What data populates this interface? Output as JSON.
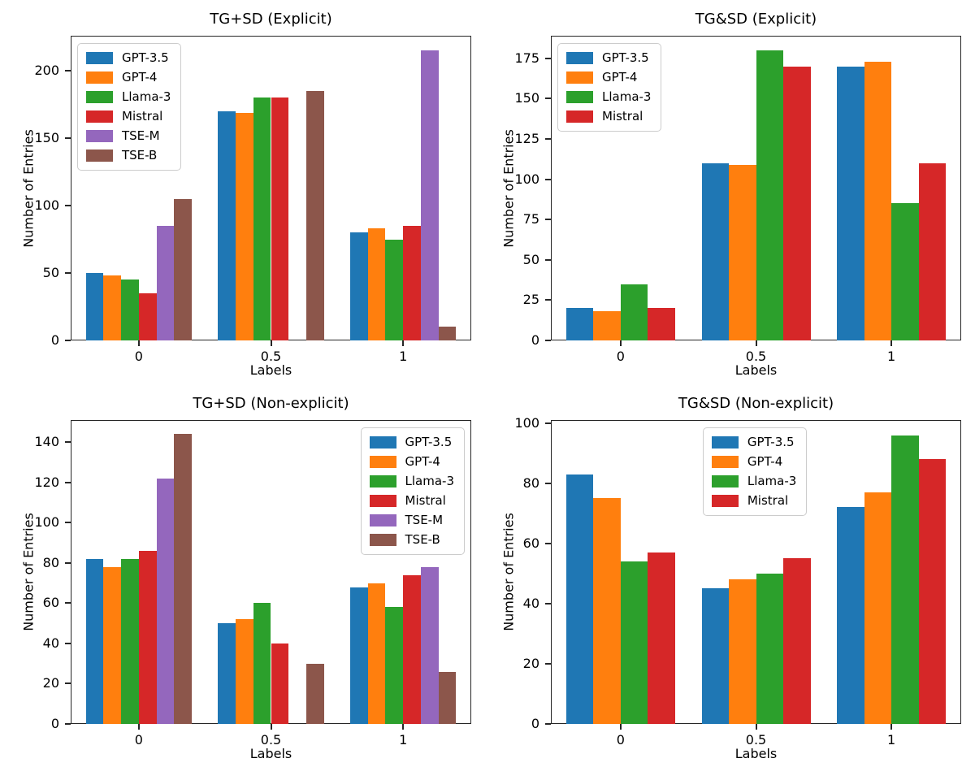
{
  "figure": {
    "background": "#ffffff",
    "series_colors": {
      "GPT-3.5": "#1f77b4",
      "GPT-4": "#ff7f0e",
      "Llama-3": "#2ca02c",
      "Mistral": "#d62728",
      "TSE-M": "#9467bd",
      "TSE-B": "#8c564b"
    }
  },
  "chart_data": [
    {
      "type": "bar",
      "title": "TG+SD (Explicit)",
      "xlabel": "Labels",
      "ylabel": "Number of Entries",
      "categories": [
        "0",
        "0.5",
        "1"
      ],
      "yticks": [
        0,
        50,
        100,
        150,
        200
      ],
      "ylim": [
        0,
        226
      ],
      "grid": false,
      "legend_loc": "upper-left",
      "series": [
        {
          "name": "GPT-3.5",
          "color": "#1f77b4",
          "values": [
            50,
            170,
            80
          ]
        },
        {
          "name": "GPT-4",
          "color": "#ff7f0e",
          "values": [
            48,
            169,
            83
          ]
        },
        {
          "name": "Llama-3",
          "color": "#2ca02c",
          "values": [
            45,
            180,
            75
          ]
        },
        {
          "name": "Mistral",
          "color": "#d62728",
          "values": [
            35,
            180,
            85
          ]
        },
        {
          "name": "TSE-M",
          "color": "#9467bd",
          "values": [
            85,
            0,
            215
          ]
        },
        {
          "name": "TSE-B",
          "color": "#8c564b",
          "values": [
            105,
            185,
            10
          ]
        }
      ]
    },
    {
      "type": "bar",
      "title": "TG&SD (Explicit)",
      "xlabel": "Labels",
      "ylabel": "Number of Entries",
      "categories": [
        "0",
        "0.5",
        "1"
      ],
      "yticks": [
        0,
        25,
        50,
        75,
        100,
        125,
        150,
        175
      ],
      "ylim": [
        0,
        189
      ],
      "grid": false,
      "legend_loc": "upper-left",
      "series": [
        {
          "name": "GPT-3.5",
          "color": "#1f77b4",
          "values": [
            20,
            110,
            170
          ]
        },
        {
          "name": "GPT-4",
          "color": "#ff7f0e",
          "values": [
            18,
            109,
            173
          ]
        },
        {
          "name": "Llama-3",
          "color": "#2ca02c",
          "values": [
            35,
            180,
            85
          ]
        },
        {
          "name": "Mistral",
          "color": "#d62728",
          "values": [
            20,
            170,
            110
          ]
        }
      ]
    },
    {
      "type": "bar",
      "title": "TG+SD (Non-explicit)",
      "xlabel": "Labels",
      "ylabel": "Number of Entries",
      "categories": [
        "0",
        "0.5",
        "1"
      ],
      "yticks": [
        0,
        20,
        40,
        60,
        80,
        100,
        120,
        140
      ],
      "ylim": [
        0,
        151
      ],
      "grid": false,
      "legend_loc": "upper-right",
      "series": [
        {
          "name": "GPT-3.5",
          "color": "#1f77b4",
          "values": [
            82,
            50,
            68
          ]
        },
        {
          "name": "GPT-4",
          "color": "#ff7f0e",
          "values": [
            78,
            52,
            70
          ]
        },
        {
          "name": "Llama-3",
          "color": "#2ca02c",
          "values": [
            82,
            60,
            58
          ]
        },
        {
          "name": "Mistral",
          "color": "#d62728",
          "values": [
            86,
            40,
            74
          ]
        },
        {
          "name": "TSE-M",
          "color": "#9467bd",
          "values": [
            122,
            0,
            78
          ]
        },
        {
          "name": "TSE-B",
          "color": "#8c564b",
          "values": [
            144,
            30,
            26
          ]
        }
      ]
    },
    {
      "type": "bar",
      "title": "TG&SD (Non-explicit)",
      "xlabel": "Labels",
      "ylabel": "Number of Entries",
      "categories": [
        "0",
        "0.5",
        "1"
      ],
      "yticks": [
        0,
        20,
        40,
        60,
        80,
        100
      ],
      "ylim": [
        0,
        101
      ],
      "grid": false,
      "legend_loc": "upper-center",
      "series": [
        {
          "name": "GPT-3.5",
          "color": "#1f77b4",
          "values": [
            83,
            45,
            72
          ]
        },
        {
          "name": "GPT-4",
          "color": "#ff7f0e",
          "values": [
            75,
            48,
            77
          ]
        },
        {
          "name": "Llama-3",
          "color": "#2ca02c",
          "values": [
            54,
            50,
            96
          ]
        },
        {
          "name": "Mistral",
          "color": "#d62728",
          "values": [
            57,
            55,
            88
          ]
        }
      ]
    }
  ]
}
